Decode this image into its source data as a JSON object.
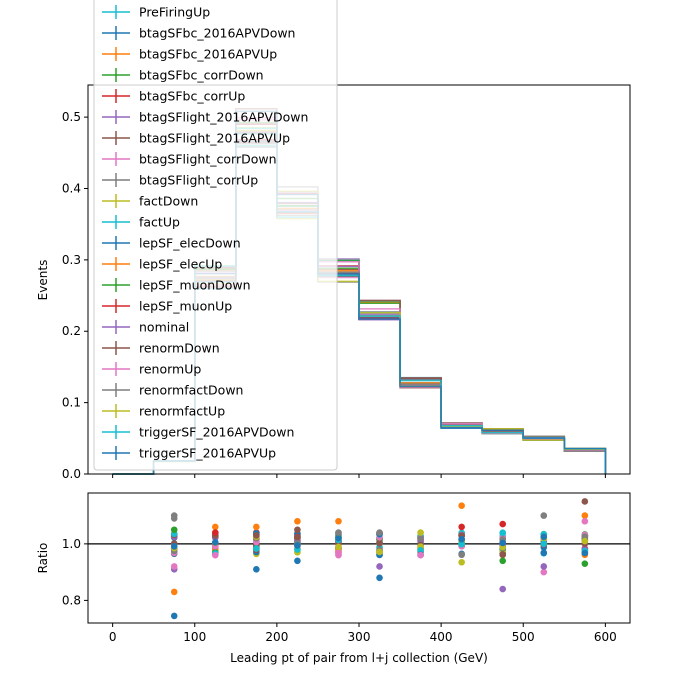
{
  "chart_data": [
    {
      "type": "line",
      "drawstyle": "steps",
      "ylabel": "Events",
      "xlabel": "",
      "xlim": [
        -30,
        630
      ],
      "ylim": [
        0,
        0.545
      ],
      "xticks": [
        0,
        100,
        200,
        300,
        400,
        500,
        600
      ],
      "yticks": [
        {
          "v": 0.0,
          "label": "0.0"
        },
        {
          "v": 0.1,
          "label": "0.1"
        },
        {
          "v": 0.2,
          "label": "0.2"
        },
        {
          "v": 0.3,
          "label": "0.3"
        },
        {
          "v": 0.4,
          "label": "0.4"
        },
        {
          "v": 0.5,
          "label": "0.5"
        }
      ],
      "bin_edges": [
        0,
        50,
        100,
        150,
        200,
        250,
        300,
        350,
        400,
        450,
        500,
        550,
        600
      ],
      "nominal": [
        0.0,
        0.018,
        0.275,
        0.485,
        0.38,
        0.285,
        0.23,
        0.128,
        0.068,
        0.06,
        0.05,
        0.034
      ],
      "legend_position": "upper-left",
      "series": [
        {
          "name": "PreFiringUp",
          "color": "#17becf"
        },
        {
          "name": "btagSFbc_2016APVDown",
          "color": "#1f77b4"
        },
        {
          "name": "btagSFbc_2016APVUp",
          "color": "#ff7f0e"
        },
        {
          "name": "btagSFbc_corrDown",
          "color": "#2ca02c"
        },
        {
          "name": "btagSFbc_corrUp",
          "color": "#d62728"
        },
        {
          "name": "btagSFlight_2016APVDown",
          "color": "#9467bd"
        },
        {
          "name": "btagSFlight_2016APVUp",
          "color": "#8c564b"
        },
        {
          "name": "btagSFlight_corrDown",
          "color": "#e377c2"
        },
        {
          "name": "btagSFlight_corrUp",
          "color": "#7f7f7f"
        },
        {
          "name": "factDown",
          "color": "#bcbd22"
        },
        {
          "name": "factUp",
          "color": "#17becf"
        },
        {
          "name": "lepSF_elecDown",
          "color": "#1f77b4"
        },
        {
          "name": "lepSF_elecUp",
          "color": "#ff7f0e"
        },
        {
          "name": "lepSF_muonDown",
          "color": "#2ca02c"
        },
        {
          "name": "lepSF_muonUp",
          "color": "#d62728"
        },
        {
          "name": "nominal",
          "color": "#9467bd"
        },
        {
          "name": "renormDown",
          "color": "#8c564b"
        },
        {
          "name": "renormUp",
          "color": "#e377c2"
        },
        {
          "name": "renormfactDown",
          "color": "#7f7f7f"
        },
        {
          "name": "renormfactUp",
          "color": "#bcbd22"
        },
        {
          "name": "triggerSF_2016APVDown",
          "color": "#17becf"
        },
        {
          "name": "triggerSF_2016APVUp",
          "color": "#1f77b4"
        }
      ]
    },
    {
      "type": "scatter",
      "ylabel": "Ratio",
      "xlabel": "Leading pt of pair from l+j collection (GeV)",
      "xlim": [
        -30,
        630
      ],
      "ylim": [
        0.72,
        1.18
      ],
      "xticks": [
        0,
        100,
        200,
        300,
        400,
        500,
        600
      ],
      "yticks": [
        {
          "v": 0.8,
          "label": "0.8"
        },
        {
          "v": 1.0,
          "label": "1.0"
        }
      ],
      "reference_line": 1.0,
      "x": [
        75,
        125,
        175,
        225,
        275,
        325,
        375,
        425,
        475,
        525,
        575
      ],
      "highlight_points": [
        {
          "x": 75,
          "y": 0.745,
          "color": "#1f77b4"
        },
        {
          "x": 75,
          "y": 0.83,
          "color": "#ff7f0e"
        },
        {
          "x": 75,
          "y": 0.91,
          "color": "#9467bd"
        },
        {
          "x": 75,
          "y": 0.92,
          "color": "#e377c2"
        },
        {
          "x": 75,
          "y": 1.1,
          "color": "#7f7f7f"
        },
        {
          "x": 75,
          "y": 1.09,
          "color": "#7f7f7f"
        },
        {
          "x": 75,
          "y": 1.05,
          "color": "#2ca02c"
        },
        {
          "x": 125,
          "y": 1.06,
          "color": "#ff7f0e"
        },
        {
          "x": 125,
          "y": 1.04,
          "color": "#d62728"
        },
        {
          "x": 125,
          "y": 0.96,
          "color": "#e377c2"
        },
        {
          "x": 175,
          "y": 0.91,
          "color": "#1f77b4"
        },
        {
          "x": 175,
          "y": 1.06,
          "color": "#ff7f0e"
        },
        {
          "x": 175,
          "y": 1.03,
          "color": "#8c564b"
        },
        {
          "x": 225,
          "y": 1.08,
          "color": "#ff7f0e"
        },
        {
          "x": 225,
          "y": 0.94,
          "color": "#1f77b4"
        },
        {
          "x": 225,
          "y": 1.05,
          "color": "#8c564b"
        },
        {
          "x": 275,
          "y": 1.08,
          "color": "#ff7f0e"
        },
        {
          "x": 275,
          "y": 0.96,
          "color": "#e377c2"
        },
        {
          "x": 275,
          "y": 1.04,
          "color": "#7f7f7f"
        },
        {
          "x": 325,
          "y": 0.88,
          "color": "#1f77b4"
        },
        {
          "x": 325,
          "y": 0.92,
          "color": "#9467bd"
        },
        {
          "x": 325,
          "y": 1.04,
          "color": "#7f7f7f"
        },
        {
          "x": 375,
          "y": 1.04,
          "color": "#bcbd22"
        },
        {
          "x": 375,
          "y": 0.96,
          "color": "#e377c2"
        },
        {
          "x": 425,
          "y": 1.135,
          "color": "#ff7f0e"
        },
        {
          "x": 425,
          "y": 1.06,
          "color": "#d62728"
        },
        {
          "x": 425,
          "y": 0.935,
          "color": "#bcbd22"
        },
        {
          "x": 475,
          "y": 0.84,
          "color": "#9467bd"
        },
        {
          "x": 475,
          "y": 1.07,
          "color": "#d62728"
        },
        {
          "x": 475,
          "y": 0.94,
          "color": "#2ca02c"
        },
        {
          "x": 525,
          "y": 1.1,
          "color": "#7f7f7f"
        },
        {
          "x": 525,
          "y": 0.9,
          "color": "#e377c2"
        },
        {
          "x": 525,
          "y": 0.92,
          "color": "#9467bd"
        },
        {
          "x": 575,
          "y": 1.15,
          "color": "#8c564b"
        },
        {
          "x": 575,
          "y": 1.1,
          "color": "#ff7f0e"
        },
        {
          "x": 575,
          "y": 1.08,
          "color": "#e377c2"
        },
        {
          "x": 575,
          "y": 0.93,
          "color": "#2ca02c"
        }
      ]
    }
  ]
}
